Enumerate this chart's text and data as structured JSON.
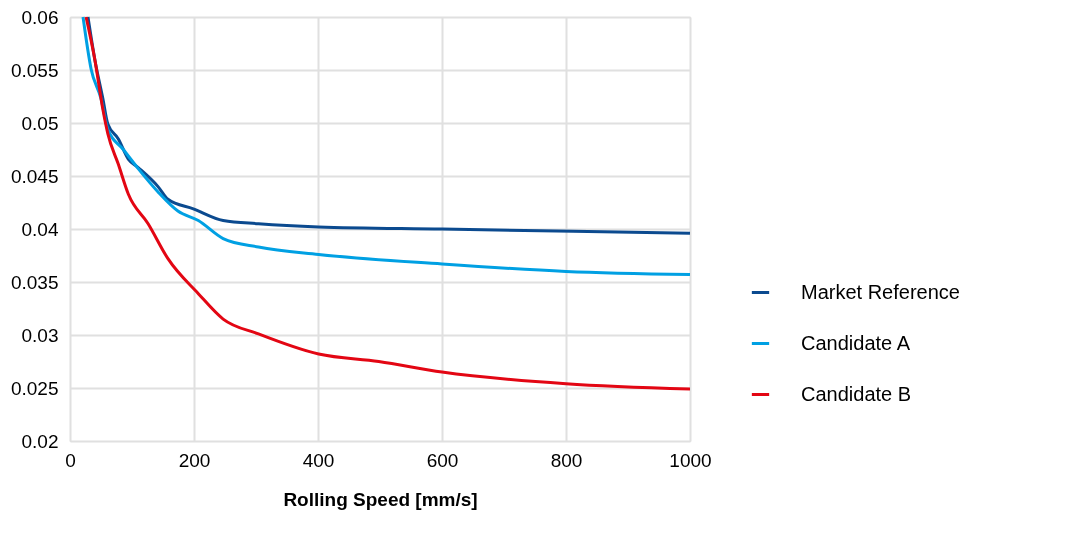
{
  "chart_data": {
    "type": "line",
    "xlabel": "Rolling Speed [mm/s]",
    "xlim": [
      0,
      1000
    ],
    "xticks": [
      0,
      200,
      400,
      600,
      800,
      1000
    ],
    "ylim": [
      0.02,
      0.06
    ],
    "yticks": [
      0.02,
      0.025,
      0.03,
      0.035,
      0.04,
      0.045,
      0.05,
      0.055,
      0.06
    ],
    "grid": true,
    "legend": "right",
    "marker": "none",
    "line_style": "solid",
    "series": [
      {
        "name": "Market Reference",
        "color": "#0b4a8f",
        "x": [
          29,
          40,
          53,
          61,
          78,
          94,
          110,
          142,
          158,
          199,
          247,
          304,
          401,
          600,
          1000
        ],
        "values": [
          0.06,
          0.056,
          0.0523,
          0.0499,
          0.0485,
          0.0466,
          0.0458,
          0.044,
          0.0428,
          0.0419,
          0.0408,
          0.0405,
          0.0402,
          0.04,
          0.0396
        ]
      },
      {
        "name": "Candidate A",
        "color": "#00a0e3",
        "x": [
          21,
          34,
          50,
          61,
          86,
          110,
          142,
          174,
          207,
          247,
          304,
          401,
          600,
          800,
          1000
        ],
        "values": [
          0.06,
          0.0551,
          0.0523,
          0.0494,
          0.0475,
          0.0457,
          0.0435,
          0.0417,
          0.0408,
          0.0391,
          0.0383,
          0.0376,
          0.0367,
          0.036,
          0.0357
        ]
      },
      {
        "name": "Candidate B",
        "color": "#e30613",
        "x": [
          26,
          40,
          53,
          61,
          78,
          94,
          126,
          158,
          207,
          247,
          304,
          401,
          498,
          600,
          800,
          1000
        ],
        "values": [
          0.06,
          0.056,
          0.0513,
          0.049,
          0.0461,
          0.0433,
          0.0405,
          0.0372,
          0.0339,
          0.0315,
          0.0301,
          0.0282,
          0.0275,
          0.0265,
          0.0254,
          0.0249
        ]
      }
    ]
  }
}
